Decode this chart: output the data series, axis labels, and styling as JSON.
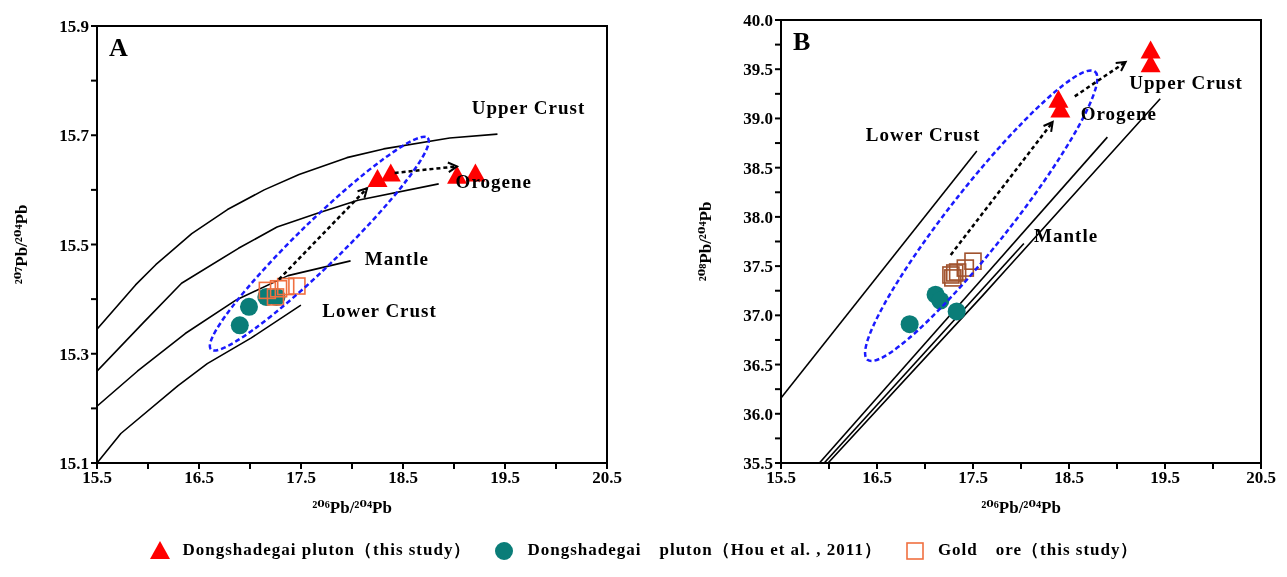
{
  "chart_data": [
    {
      "type": "scatter",
      "title": "A",
      "xlabel": "²⁰⁶Pb/²⁰⁴Pb",
      "ylabel": "²⁰⁷Pb/²⁰⁴Pb",
      "xlim": [
        15.5,
        20.5
      ],
      "ylim": [
        15.1,
        15.9
      ],
      "xticks": [
        15.5,
        {
          "value": 16,
          "label": null
        },
        16.5,
        {
          "value": 17,
          "label": null
        },
        17.5,
        {
          "value": 18,
          "label": null
        },
        18.5,
        {
          "value": 19,
          "label": null
        },
        19.5,
        {
          "value": 20,
          "label": null
        },
        20.5
      ],
      "yticks": [
        15.1,
        {
          "value": 15.2,
          "label": null
        },
        15.3,
        {
          "value": 15.4,
          "label": null
        },
        15.5,
        {
          "value": 15.6,
          "label": null
        },
        15.7,
        {
          "value": 15.8,
          "label": null
        },
        15.9
      ],
      "legend": "bottom",
      "series": [
        {
          "type": "line",
          "color": "#000000",
          "x": [
            15.5,
            15.878,
            16.076,
            16.429,
            16.779,
            17.139,
            17.481,
            17.95,
            18.31,
            18.958,
            19.426
          ],
          "values": [
            15.345,
            15.426,
            15.463,
            15.52,
            15.564,
            15.6,
            15.628,
            15.659,
            15.675,
            15.695,
            15.702
          ]
        },
        {
          "type": "line",
          "color": "#000000",
          "x": [
            15.5,
            15.95,
            16.329,
            16.887,
            17.265,
            17.661,
            18.058,
            18.85
          ],
          "values": [
            15.268,
            15.356,
            15.429,
            15.493,
            15.532,
            15.557,
            15.581,
            15.611
          ]
        },
        {
          "type": "line",
          "color": "#000000",
          "x": [
            15.5,
            15.896,
            16.365,
            16.869,
            17.373,
            17.986
          ],
          "values": [
            15.204,
            15.268,
            15.337,
            15.399,
            15.443,
            15.47
          ]
        },
        {
          "type": "line",
          "color": "#000000",
          "x": [
            15.5,
            15.734,
            16.292,
            16.581,
            17.013,
            17.499
          ],
          "values": [
            15.1,
            15.154,
            15.241,
            15.282,
            15.329,
            15.389
          ]
        },
        {
          "name": "Dongshadegai pluton（this study）",
          "marker": "triangle",
          "color": "#ff0000",
          "x": [
            18.25,
            18.38,
            19.03,
            19.21
          ],
          "values": [
            15.62,
            15.63,
            15.626,
            15.63
          ]
        },
        {
          "name": "Dongshadegai　pluton（Hou et al. , 2011）",
          "marker": "circle",
          "color": "#0a7d78",
          "x": [
            16.9,
            16.99,
            17.16,
            17.26
          ],
          "values": [
            15.352,
            15.386,
            15.404,
            15.404
          ]
        },
        {
          "name": "Gold　ore（this study）",
          "marker": "square",
          "color": "#f07040",
          "x": [
            17.17,
            17.28,
            17.35,
            17.46,
            17.25
          ],
          "values": [
            15.416,
            15.419,
            15.423,
            15.424,
            15.404
          ]
        }
      ],
      "annotations": [
        "Upper Crust",
        "Orogene",
        "Mantle",
        "Lower Crust"
      ]
    },
    {
      "type": "scatter",
      "title": "B",
      "xlabel": "²⁰⁶Pb/²⁰⁴Pb",
      "ylabel": "²⁰⁸Pb/²⁰⁴Pb",
      "xlim": [
        15.5,
        20.5
      ],
      "ylim": [
        35.5,
        40.0
      ],
      "xticks": [
        15.5,
        {
          "value": 16,
          "label": null
        },
        16.5,
        {
          "value": 17,
          "label": null
        },
        17.5,
        {
          "value": 18,
          "label": null
        },
        18.5,
        {
          "value": 19,
          "label": null
        },
        19.5,
        {
          "value": 20,
          "label": null
        },
        20.5
      ],
      "yticks": [
        35.5,
        {
          "value": 35.75,
          "label": null
        },
        {
          "value": 36,
          "label": "36.0"
        },
        {
          "value": 36.25,
          "label": null
        },
        36.5,
        {
          "value": 36.75,
          "label": null
        },
        {
          "value": 37,
          "label": "37.0"
        },
        {
          "value": 37.25,
          "label": null
        },
        37.5,
        {
          "value": 37.75,
          "label": null
        },
        {
          "value": 38,
          "label": "38.0"
        },
        {
          "value": 38.25,
          "label": null
        },
        38.5,
        {
          "value": 38.75,
          "label": null
        },
        {
          "value": 39,
          "label": "39.0"
        },
        {
          "value": 39.25,
          "label": null
        },
        39.5,
        {
          "value": 39.75,
          "label": null
        },
        {
          "value": 40,
          "label": "40.0"
        }
      ],
      "series": [
        {
          "type": "line",
          "color": "#000000",
          "x": [
            15.5,
            17.54
          ],
          "values": [
            36.16,
            38.67
          ]
        },
        {
          "type": "line",
          "color": "#000000",
          "x": [
            15.9,
            18.9
          ],
          "values": [
            35.5,
            38.81
          ]
        },
        {
          "type": "line",
          "color": "#000000",
          "x": [
            15.95,
            18.03
          ],
          "values": [
            35.5,
            37.73
          ]
        },
        {
          "type": "line",
          "color": "#000000",
          "x": [
            15.99,
            17.6,
            19.45
          ],
          "values": [
            35.5,
            37.2,
            39.2
          ]
        },
        {
          "marker": "triangle",
          "color": "#ff0000",
          "x": [
            19.35,
            19.35,
            18.39,
            18.41
          ],
          "values": [
            39.69,
            39.55,
            39.19,
            39.09
          ]
        },
        {
          "marker": "circle",
          "color": "#0a7d78",
          "x": [
            16.84,
            17.11,
            17.16,
            17.33
          ],
          "values": [
            36.91,
            37.21,
            37.15,
            37.04
          ]
        },
        {
          "marker": "square",
          "color": "#a0522d",
          "x": [
            17.27,
            17.31,
            17.34,
            17.42,
            17.5,
            17.29
          ],
          "values": [
            37.41,
            37.43,
            37.44,
            37.48,
            37.55,
            37.38
          ]
        }
      ],
      "annotations": [
        "Lower Crust",
        "Orogene",
        "Upper Crust",
        "Mantle"
      ]
    }
  ]
}
